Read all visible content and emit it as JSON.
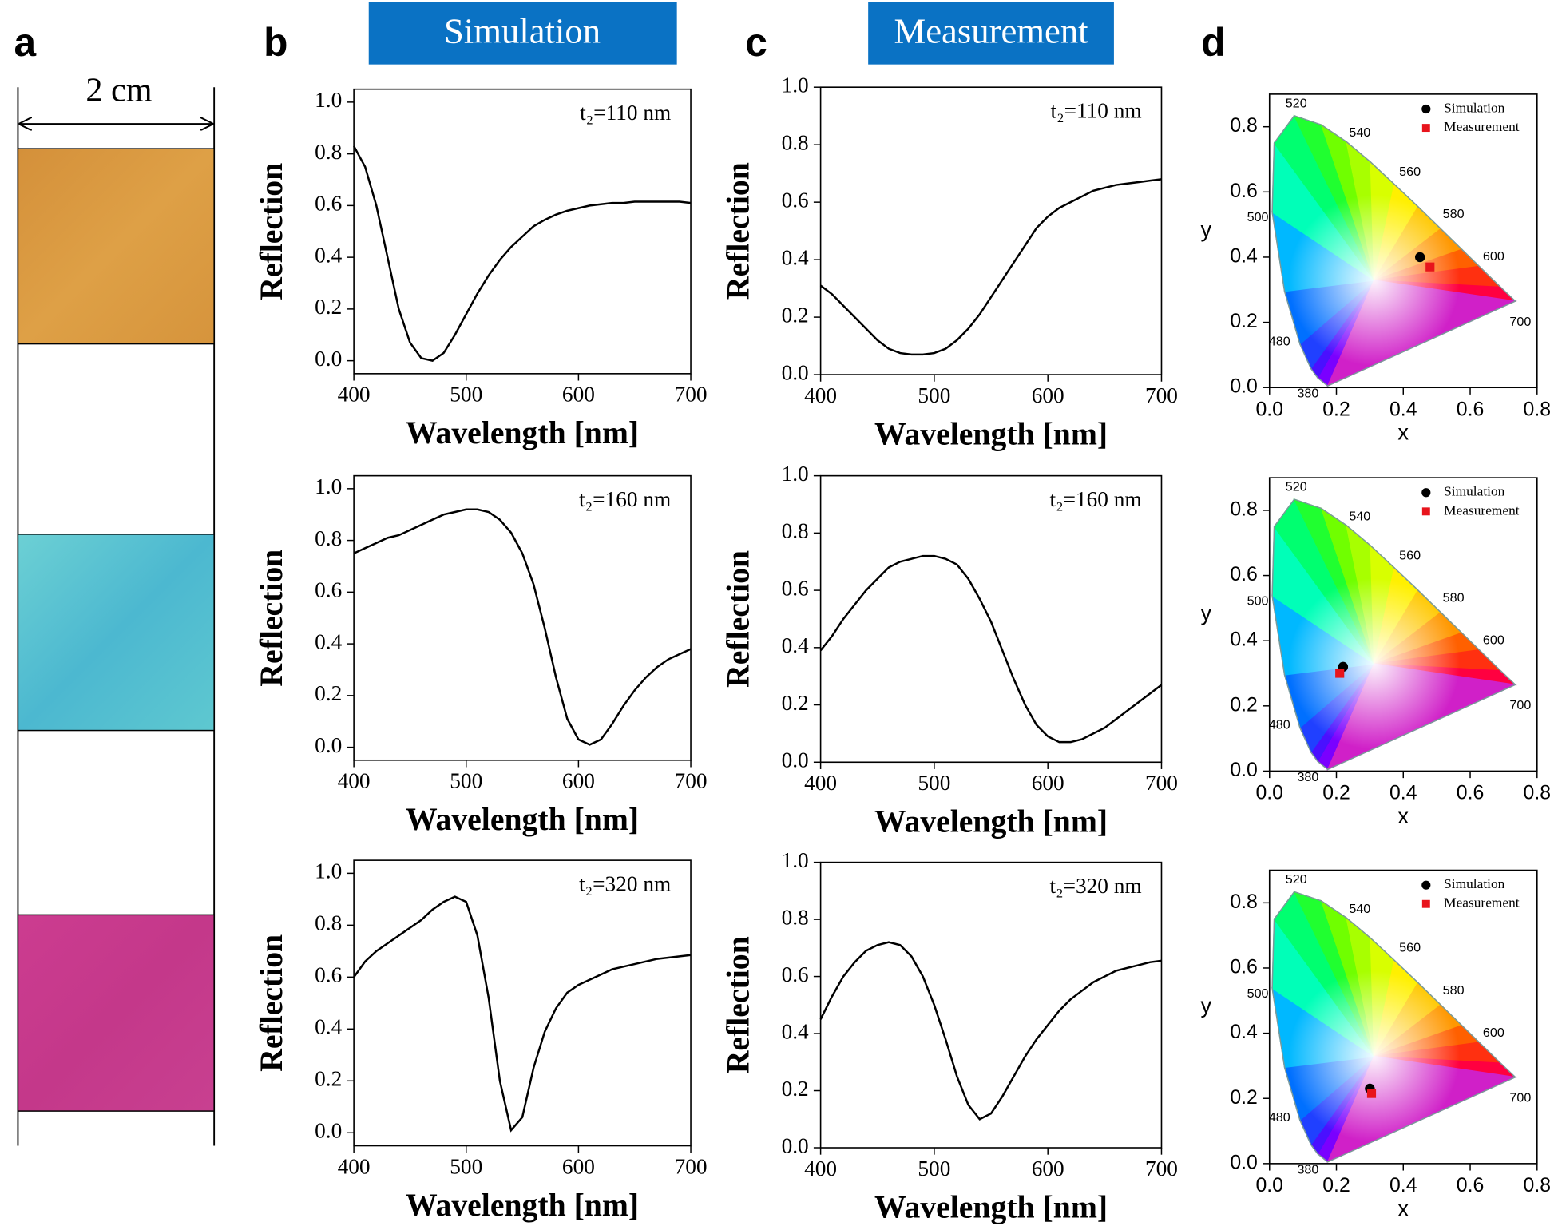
{
  "figure": {
    "panel_labels": [
      "a",
      "b",
      "c",
      "d"
    ],
    "headers": [
      "Simulation",
      "Measurement"
    ],
    "scale_label": "2 cm"
  },
  "chart_data": [
    {
      "type": "line",
      "annotation": "t₂=110 nm",
      "xlabel": "Wavelength [nm]",
      "ylabel": "Reflection",
      "xlim": [
        400,
        700
      ],
      "xticks": [
        400,
        500,
        600,
        700
      ],
      "ylim": [
        -0.05,
        1.05
      ],
      "yticks": [
        {
          "value": 0,
          "label": "0.0"
        },
        0.2,
        0.4,
        0.6,
        0.8,
        {
          "value": 1,
          "label": "1.0"
        }
      ],
      "color": "#000000",
      "x": [
        400,
        410,
        420,
        430,
        440,
        450,
        460,
        470,
        480,
        490,
        500,
        510,
        520,
        530,
        540,
        550,
        560,
        570,
        580,
        590,
        600,
        610,
        620,
        630,
        640,
        650,
        660,
        670,
        680,
        690,
        700
      ],
      "values": [
        0.83,
        0.75,
        0.6,
        0.4,
        0.2,
        0.07,
        0.01,
        0.0,
        0.03,
        0.1,
        0.18,
        0.26,
        0.33,
        0.39,
        0.44,
        0.48,
        0.52,
        0.545,
        0.565,
        0.58,
        0.59,
        0.6,
        0.605,
        0.61,
        0.61,
        0.615,
        0.615,
        0.615,
        0.615,
        0.615,
        0.61
      ]
    },
    {
      "type": "line",
      "annotation": "t₂=110 nm",
      "xlabel": "Wavelength [nm]",
      "ylabel": "Reflection",
      "xlim": [
        400,
        700
      ],
      "xticks": [
        400,
        500,
        600,
        700
      ],
      "ylim": [
        0,
        1
      ],
      "yticks": [
        {
          "value": 0,
          "label": "0.0"
        },
        0.2,
        0.4,
        0.6,
        0.8,
        {
          "value": 1,
          "label": "1.0"
        }
      ],
      "color": "#000000",
      "x": [
        400,
        410,
        420,
        430,
        440,
        450,
        460,
        470,
        480,
        490,
        500,
        510,
        520,
        530,
        540,
        550,
        560,
        570,
        580,
        590,
        600,
        610,
        620,
        630,
        640,
        650,
        660,
        670,
        680,
        690,
        700
      ],
      "values": [
        0.31,
        0.28,
        0.24,
        0.2,
        0.16,
        0.12,
        0.09,
        0.075,
        0.07,
        0.07,
        0.075,
        0.09,
        0.12,
        0.16,
        0.21,
        0.27,
        0.33,
        0.39,
        0.45,
        0.51,
        0.55,
        0.58,
        0.6,
        0.62,
        0.64,
        0.65,
        0.66,
        0.665,
        0.67,
        0.675,
        0.68
      ]
    },
    {
      "type": "scatter",
      "xlabel": "x",
      "ylabel": "y",
      "xlim": [
        0,
        0.8
      ],
      "xticks": [
        {
          "value": 0,
          "label": "0.0"
        },
        0.2,
        0.4,
        0.6,
        0.8
      ],
      "ylim": [
        0,
        0.9
      ],
      "yticks": [
        {
          "value": 0,
          "label": "0.0"
        },
        0.2,
        0.4,
        0.6,
        0.8
      ],
      "legend": "upper right",
      "locus_labels": [
        "520",
        "540",
        "560",
        "580",
        "600",
        "700",
        "500",
        "480",
        "380"
      ],
      "series": [
        {
          "name": "Simulation",
          "color": "#000000",
          "marker": "circle",
          "x": [
            0.45
          ],
          "values": [
            0.4
          ]
        },
        {
          "name": "Measurement",
          "color": "#e8141c",
          "marker": "square",
          "x": [
            0.48
          ],
          "values": [
            0.37
          ]
        }
      ]
    },
    {
      "type": "line",
      "annotation": "t₂=160 nm",
      "xlabel": "Wavelength [nm]",
      "ylabel": "Reflection",
      "xlim": [
        400,
        700
      ],
      "xticks": [
        400,
        500,
        600,
        700
      ],
      "ylim": [
        -0.05,
        1.05
      ],
      "yticks": [
        {
          "value": 0,
          "label": "0.0"
        },
        0.2,
        0.4,
        0.6,
        0.8,
        {
          "value": 1,
          "label": "1.0"
        }
      ],
      "color": "#000000",
      "x": [
        400,
        410,
        420,
        430,
        440,
        450,
        460,
        470,
        480,
        490,
        500,
        510,
        520,
        530,
        540,
        550,
        560,
        570,
        580,
        590,
        600,
        610,
        620,
        630,
        640,
        650,
        660,
        670,
        680,
        690,
        700
      ],
      "values": [
        0.75,
        0.77,
        0.79,
        0.81,
        0.82,
        0.84,
        0.86,
        0.88,
        0.9,
        0.91,
        0.92,
        0.92,
        0.91,
        0.88,
        0.83,
        0.75,
        0.63,
        0.46,
        0.27,
        0.11,
        0.03,
        0.01,
        0.03,
        0.09,
        0.16,
        0.22,
        0.27,
        0.31,
        0.34,
        0.36,
        0.38
      ]
    },
    {
      "type": "line",
      "annotation": "t₂=160 nm",
      "xlabel": "Wavelength [nm]",
      "ylabel": "Reflection",
      "xlim": [
        400,
        700
      ],
      "xticks": [
        400,
        500,
        600,
        700
      ],
      "ylim": [
        0,
        1
      ],
      "yticks": [
        {
          "value": 0,
          "label": "0.0"
        },
        0.2,
        0.4,
        0.6,
        0.8,
        {
          "value": 1,
          "label": "1.0"
        }
      ],
      "color": "#000000",
      "x": [
        400,
        410,
        420,
        430,
        440,
        450,
        460,
        470,
        480,
        490,
        500,
        510,
        520,
        530,
        540,
        550,
        560,
        570,
        580,
        590,
        600,
        610,
        620,
        630,
        640,
        650,
        660,
        670,
        680,
        690,
        700
      ],
      "values": [
        0.39,
        0.44,
        0.5,
        0.55,
        0.6,
        0.64,
        0.68,
        0.7,
        0.71,
        0.72,
        0.72,
        0.71,
        0.69,
        0.64,
        0.57,
        0.49,
        0.39,
        0.29,
        0.2,
        0.13,
        0.09,
        0.07,
        0.07,
        0.08,
        0.1,
        0.12,
        0.15,
        0.18,
        0.21,
        0.24,
        0.27
      ]
    },
    {
      "type": "scatter",
      "xlabel": "x",
      "ylabel": "y",
      "xlim": [
        0,
        0.8
      ],
      "xticks": [
        {
          "value": 0,
          "label": "0.0"
        },
        0.2,
        0.4,
        0.6,
        0.8
      ],
      "ylim": [
        0,
        0.9
      ],
      "yticks": [
        {
          "value": 0,
          "label": "0.0"
        },
        0.2,
        0.4,
        0.6,
        0.8
      ],
      "legend": "upper right",
      "locus_labels": [
        "520",
        "540",
        "560",
        "580",
        "600",
        "700",
        "500",
        "480",
        "380"
      ],
      "series": [
        {
          "name": "Simulation",
          "color": "#000000",
          "marker": "circle",
          "x": [
            0.22
          ],
          "values": [
            0.32
          ]
        },
        {
          "name": "Measurement",
          "color": "#e8141c",
          "marker": "square",
          "x": [
            0.21
          ],
          "values": [
            0.3
          ]
        }
      ]
    },
    {
      "type": "line",
      "annotation": "t₂=320 nm",
      "xlabel": "Wavelength [nm]",
      "ylabel": "Reflection",
      "xlim": [
        400,
        700
      ],
      "xticks": [
        400,
        500,
        600,
        700
      ],
      "ylim": [
        -0.05,
        1.05
      ],
      "yticks": [
        {
          "value": 0,
          "label": "0.0"
        },
        0.2,
        0.4,
        0.6,
        0.8,
        {
          "value": 1,
          "label": "1.0"
        }
      ],
      "color": "#000000",
      "x": [
        400,
        410,
        420,
        430,
        440,
        450,
        460,
        470,
        480,
        490,
        500,
        510,
        520,
        530,
        540,
        550,
        560,
        570,
        580,
        590,
        600,
        610,
        620,
        630,
        640,
        650,
        660,
        670,
        680,
        690,
        700
      ],
      "values": [
        0.6,
        0.66,
        0.7,
        0.73,
        0.76,
        0.79,
        0.82,
        0.86,
        0.89,
        0.91,
        0.89,
        0.76,
        0.52,
        0.2,
        0.01,
        0.06,
        0.25,
        0.39,
        0.48,
        0.54,
        0.57,
        0.59,
        0.61,
        0.63,
        0.64,
        0.65,
        0.66,
        0.67,
        0.675,
        0.68,
        0.685
      ]
    },
    {
      "type": "line",
      "annotation": "t₂=320 nm",
      "xlabel": "Wavelength [nm]",
      "ylabel": "Reflection",
      "xlim": [
        400,
        700
      ],
      "xticks": [
        400,
        500,
        600,
        700
      ],
      "ylim": [
        0,
        1
      ],
      "yticks": [
        {
          "value": 0,
          "label": "0.0"
        },
        0.2,
        0.4,
        0.6,
        0.8,
        {
          "value": 1,
          "label": "1.0"
        }
      ],
      "color": "#000000",
      "x": [
        400,
        410,
        420,
        430,
        440,
        450,
        460,
        470,
        480,
        490,
        500,
        510,
        520,
        530,
        540,
        550,
        560,
        570,
        580,
        590,
        600,
        610,
        620,
        630,
        640,
        650,
        660,
        670,
        680,
        690,
        700
      ],
      "values": [
        0.45,
        0.53,
        0.6,
        0.65,
        0.69,
        0.71,
        0.72,
        0.71,
        0.67,
        0.6,
        0.5,
        0.38,
        0.25,
        0.15,
        0.1,
        0.12,
        0.18,
        0.25,
        0.32,
        0.38,
        0.43,
        0.48,
        0.52,
        0.55,
        0.58,
        0.6,
        0.62,
        0.63,
        0.64,
        0.65,
        0.655
      ]
    },
    {
      "type": "scatter",
      "xlabel": "x",
      "ylabel": "y",
      "xlim": [
        0,
        0.8
      ],
      "xticks": [
        {
          "value": 0,
          "label": "0.0"
        },
        0.2,
        0.4,
        0.6,
        0.8
      ],
      "ylim": [
        0,
        0.9
      ],
      "yticks": [
        {
          "value": 0,
          "label": "0.0"
        },
        0.2,
        0.4,
        0.6,
        0.8
      ],
      "legend": "upper right",
      "locus_labels": [
        "520",
        "540",
        "560",
        "580",
        "600",
        "700",
        "500",
        "480",
        "380"
      ],
      "series": [
        {
          "name": "Simulation",
          "color": "#000000",
          "marker": "circle",
          "x": [
            0.3
          ],
          "values": [
            0.23
          ]
        },
        {
          "name": "Measurement",
          "color": "#e8141c",
          "marker": "square",
          "x": [
            0.305
          ],
          "values": [
            0.215
          ]
        }
      ]
    }
  ]
}
